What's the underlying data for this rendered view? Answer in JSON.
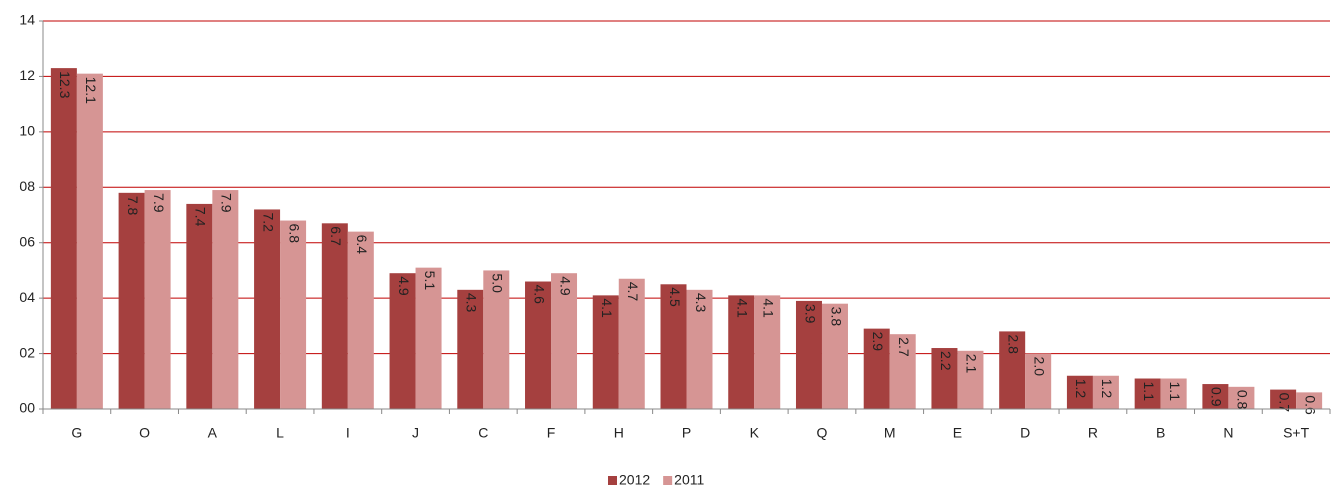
{
  "chart_data": {
    "type": "bar",
    "categories": [
      "G",
      "O",
      "A",
      "L",
      "I",
      "J",
      "C",
      "F",
      "H",
      "P",
      "K",
      "Q",
      "M",
      "E",
      "D",
      "R",
      "B",
      "N",
      "S+T"
    ],
    "series": [
      {
        "name": "2012",
        "color": "#a5403f",
        "values": [
          12.3,
          7.8,
          7.4,
          7.2,
          6.7,
          4.9,
          4.3,
          4.6,
          4.1,
          4.5,
          4.1,
          3.9,
          2.9,
          2.2,
          2.8,
          1.2,
          1.1,
          0.9,
          0.7
        ],
        "value_labels": [
          "12.3",
          "7.8",
          "7.4",
          "7.2",
          "6.7",
          "4.9",
          "4.3",
          "4.6",
          "4.1",
          "4.5",
          "4.1",
          "3.9",
          "2.9",
          "2.2",
          "2.8",
          "1.2",
          "1.1",
          "0.9",
          "0.7"
        ]
      },
      {
        "name": "2011",
        "color": "#d69594",
        "values": [
          12.1,
          7.9,
          7.9,
          6.8,
          6.4,
          5.1,
          5.0,
          4.9,
          4.7,
          4.3,
          4.1,
          3.8,
          2.7,
          2.1,
          2.0,
          1.2,
          1.1,
          0.8,
          0.6
        ],
        "value_labels": [
          "12.1",
          "7.9",
          "7.9",
          "6.8",
          "6.4",
          "5.1",
          "5.0",
          "4.9",
          "4.7",
          "4.3",
          "4.1",
          "3.8",
          "2.7",
          "2.1",
          "2.0",
          "1.2",
          "1.1",
          "0.8",
          "0.6"
        ]
      }
    ],
    "ylim": [
      0,
      14
    ],
    "yticks": [
      {
        "value": 0,
        "label": "00"
      },
      {
        "value": 2,
        "label": "02"
      },
      {
        "value": 4,
        "label": "04"
      },
      {
        "value": 6,
        "label": "06"
      },
      {
        "value": 8,
        "label": "08"
      },
      10,
      12,
      14
    ],
    "grid": true,
    "grid_color": "#c00000",
    "legend": "bottom"
  }
}
